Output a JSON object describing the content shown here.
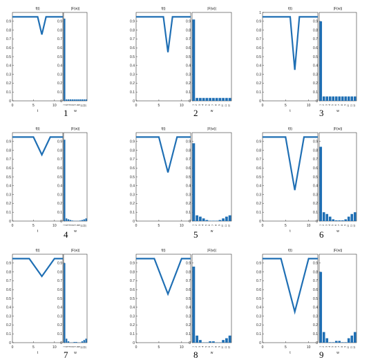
{
  "colors": {
    "series": "#1f6fb4",
    "axis": "#333333",
    "text": "#222222"
  },
  "panels": [
    {
      "number": "1",
      "depth": 0.75,
      "width": 1.0
    },
    {
      "number": "2",
      "depth": 0.55,
      "width": 1.0
    },
    {
      "number": "3",
      "depth": 0.35,
      "width": 1.0
    },
    {
      "number": "4",
      "depth": 0.75,
      "width": 2.0
    },
    {
      "number": "5",
      "depth": 0.55,
      "width": 2.0
    },
    {
      "number": "6",
      "depth": 0.35,
      "width": 2.0
    },
    {
      "number": "7",
      "depth": 0.75,
      "width": 3.0
    },
    {
      "number": "8",
      "depth": 0.55,
      "width": 3.0
    },
    {
      "number": "9",
      "depth": 0.35,
      "width": 3.0
    }
  ],
  "chart_data": [
    {
      "type": "line",
      "title": "f(t)",
      "xlabel": "t",
      "ylabel": "",
      "xlim": [
        0,
        12
      ],
      "ylim": [
        0,
        1
      ],
      "xticks": [
        0,
        5,
        10
      ],
      "yticks": [
        0,
        0.1,
        0.2,
        0.3,
        0.4,
        0.5,
        0.6,
        0.7,
        0.8,
        0.9
      ],
      "x": [
        0,
        6,
        7,
        8,
        12
      ],
      "y": [
        0.95,
        0.95,
        0.75,
        0.95,
        0.95
      ]
    },
    {
      "type": "bar",
      "title": "|F(w)|",
      "xlabel": "w",
      "ylabel": "",
      "ylim": [
        0,
        1
      ],
      "yticks": [
        0,
        0.1,
        0.2,
        0.3,
        0.4,
        0.5,
        0.6,
        0.7,
        0.8,
        0.9
      ],
      "categories": [
        "1",
        "2",
        "3",
        "4",
        "5",
        "6",
        "7",
        "8",
        "9",
        "10",
        "11",
        "12"
      ],
      "values": [
        0.93,
        0.017,
        0.017,
        0.017,
        0.017,
        0.017,
        0.017,
        0.017,
        0.017,
        0.017,
        0.017,
        0.017
      ]
    },
    {
      "type": "line",
      "title": "f(t)",
      "xlabel": "",
      "ylabel": "",
      "xlim": [
        0,
        12
      ],
      "ylim": [
        0,
        1
      ],
      "xticks": [
        0,
        5,
        10
      ],
      "yticks": [
        0,
        0.1,
        0.2,
        0.3,
        0.4,
        0.5,
        0.6,
        0.7,
        0.8,
        0.9
      ],
      "x": [
        0,
        6,
        7,
        8,
        12
      ],
      "y": [
        0.95,
        0.95,
        0.55,
        0.95,
        0.95
      ]
    },
    {
      "type": "bar",
      "title": "|F(w)|",
      "xlabel": "w",
      "ylabel": "",
      "ylim": [
        0,
        1
      ],
      "yticks": [
        0,
        0.1,
        0.2,
        0.3,
        0.4,
        0.5,
        0.6,
        0.7,
        0.8,
        0.9
      ],
      "categories": [
        "1",
        "2",
        "3",
        "4",
        "5",
        "6",
        "7",
        "8",
        "9",
        "10",
        "11",
        "12"
      ],
      "values": [
        0.92,
        0.033,
        0.033,
        0.033,
        0.033,
        0.033,
        0.033,
        0.033,
        0.033,
        0.033,
        0.033,
        0.033
      ]
    },
    {
      "type": "line",
      "title": "f(t)",
      "xlabel": "t",
      "ylabel": "",
      "xlim": [
        0,
        12
      ],
      "ylim": [
        0,
        1
      ],
      "xticks": [
        0,
        5,
        10
      ],
      "yticks": [
        0,
        0.1,
        0.2,
        0.3,
        0.4,
        0.5,
        0.6,
        0.7,
        0.8,
        0.9,
        1
      ],
      "x": [
        0,
        6,
        7,
        8,
        12
      ],
      "y": [
        0.95,
        0.95,
        0.35,
        0.95,
        0.95
      ]
    },
    {
      "type": "bar",
      "title": "|F(w)|",
      "xlabel": "w",
      "ylabel": "",
      "ylim": [
        0,
        1
      ],
      "yticks": [
        0,
        0.1,
        0.2,
        0.3,
        0.4,
        0.5,
        0.6,
        0.7,
        0.8,
        0.9
      ],
      "categories": [
        "1",
        "2",
        "3",
        "4",
        "5",
        "6",
        "7",
        "8",
        "9",
        "10",
        "11",
        "12"
      ],
      "values": [
        0.9,
        0.05,
        0.05,
        0.05,
        0.05,
        0.05,
        0.05,
        0.05,
        0.05,
        0.05,
        0.05,
        0.05
      ]
    },
    {
      "type": "line",
      "title": "f(t)",
      "xlabel": "t",
      "ylabel": "",
      "xlim": [
        0,
        12
      ],
      "ylim": [
        0,
        1
      ],
      "xticks": [
        0,
        5,
        10
      ],
      "yticks": [
        0,
        0.1,
        0.2,
        0.3,
        0.4,
        0.5,
        0.6,
        0.7,
        0.8,
        0.9
      ],
      "x": [
        0,
        5,
        7,
        9,
        12
      ],
      "y": [
        0.95,
        0.95,
        0.75,
        0.95,
        0.95
      ]
    },
    {
      "type": "bar",
      "title": "|F(w)|",
      "xlabel": "w",
      "ylabel": "",
      "ylim": [
        0,
        1
      ],
      "yticks": [
        0,
        0.1,
        0.2,
        0.3,
        0.4,
        0.5,
        0.6,
        0.7,
        0.8,
        0.9
      ],
      "categories": [
        "1",
        "2",
        "3",
        "4",
        "5",
        "6",
        "7",
        "8",
        "9",
        "10",
        "11",
        "12"
      ],
      "values": [
        0.92,
        0.03,
        0.02,
        0.012,
        0.006,
        0.002,
        0.002,
        0.002,
        0.006,
        0.012,
        0.02,
        0.03
      ]
    },
    {
      "type": "line",
      "title": "f(t)",
      "xlabel": "",
      "ylabel": "",
      "xlim": [
        0,
        12
      ],
      "ylim": [
        0,
        1
      ],
      "xticks": [
        0,
        5,
        10
      ],
      "yticks": [
        0,
        0.1,
        0.2,
        0.3,
        0.4,
        0.5,
        0.6,
        0.7,
        0.8,
        0.9
      ],
      "x": [
        0,
        5,
        7,
        9,
        12
      ],
      "y": [
        0.95,
        0.95,
        0.55,
        0.95,
        0.95
      ]
    },
    {
      "type": "bar",
      "title": "|F(w)|",
      "xlabel": "w",
      "ylabel": "",
      "ylim": [
        0,
        1
      ],
      "yticks": [
        0,
        0.1,
        0.2,
        0.3,
        0.4,
        0.5,
        0.6,
        0.7,
        0.8,
        0.9
      ],
      "categories": [
        "1",
        "2",
        "3",
        "4",
        "5",
        "6",
        "7",
        "8",
        "9",
        "10",
        "11",
        "12"
      ],
      "values": [
        0.88,
        0.065,
        0.05,
        0.03,
        0.012,
        0.004,
        0.004,
        0.004,
        0.012,
        0.03,
        0.05,
        0.065
      ]
    },
    {
      "type": "line",
      "title": "f(t)",
      "xlabel": "t",
      "ylabel": "",
      "xlim": [
        0,
        12
      ],
      "ylim": [
        0,
        1
      ],
      "xticks": [
        0,
        5,
        10
      ],
      "yticks": [
        0,
        0.1,
        0.2,
        0.3,
        0.4,
        0.5,
        0.6,
        0.7,
        0.8,
        0.9
      ],
      "x": [
        0,
        5,
        7,
        9,
        12
      ],
      "y": [
        0.95,
        0.95,
        0.35,
        0.95,
        0.95
      ]
    },
    {
      "type": "bar",
      "title": "|F(w)|",
      "xlabel": "w",
      "ylabel": "",
      "ylim": [
        0,
        1
      ],
      "yticks": [
        0,
        0.1,
        0.2,
        0.3,
        0.4,
        0.5,
        0.6,
        0.7,
        0.8,
        0.9
      ],
      "categories": [
        "1",
        "2",
        "3",
        "4",
        "5",
        "6",
        "7",
        "8",
        "9",
        "10",
        "11",
        "12"
      ],
      "values": [
        0.84,
        0.1,
        0.08,
        0.05,
        0.02,
        0.008,
        0.008,
        0.008,
        0.02,
        0.05,
        0.08,
        0.1
      ]
    },
    {
      "type": "line",
      "title": "f(t)",
      "xlabel": "t",
      "ylabel": "",
      "xlim": [
        0,
        12
      ],
      "ylim": [
        0,
        1
      ],
      "xticks": [
        0,
        5,
        10
      ],
      "yticks": [
        0,
        0.1,
        0.2,
        0.3,
        0.4,
        0.5,
        0.6,
        0.7,
        0.8,
        0.9
      ],
      "x": [
        0,
        4,
        7,
        10,
        12
      ],
      "y": [
        0.95,
        0.95,
        0.75,
        0.95,
        0.95
      ]
    },
    {
      "type": "bar",
      "title": "|F(w)|",
      "xlabel": "w",
      "ylabel": "",
      "ylim": [
        0,
        1
      ],
      "yticks": [
        0,
        0.1,
        0.2,
        0.3,
        0.4,
        0.5,
        0.6,
        0.7,
        0.8,
        0.9
      ],
      "categories": [
        "1",
        "2",
        "3",
        "4",
        "5",
        "6",
        "7",
        "8",
        "9",
        "10",
        "11",
        "12"
      ],
      "values": [
        0.9,
        0.045,
        0.015,
        0.002,
        0.002,
        0.008,
        0.008,
        0.002,
        0.002,
        0.015,
        0.03,
        0.045
      ]
    },
    {
      "type": "line",
      "title": "f(t)",
      "xlabel": "",
      "ylabel": "",
      "xlim": [
        0,
        12
      ],
      "ylim": [
        0,
        1
      ],
      "xticks": [
        0,
        5,
        10
      ],
      "yticks": [
        0,
        0.1,
        0.2,
        0.3,
        0.4,
        0.5,
        0.6,
        0.7,
        0.8,
        0.9
      ],
      "x": [
        0,
        4,
        7,
        10,
        12
      ],
      "y": [
        0.95,
        0.95,
        0.55,
        0.95,
        0.95
      ]
    },
    {
      "type": "bar",
      "title": "|F(w)|",
      "xlabel": "w",
      "ylabel": "",
      "ylim": [
        0,
        1
      ],
      "yticks": [
        0,
        0.1,
        0.2,
        0.3,
        0.4,
        0.5,
        0.6,
        0.7,
        0.8,
        0.9
      ],
      "categories": [
        "1",
        "2",
        "3",
        "4",
        "5",
        "6",
        "7",
        "8",
        "9",
        "10",
        "11",
        "12"
      ],
      "values": [
        0.86,
        0.08,
        0.03,
        0.003,
        0.003,
        0.015,
        0.015,
        0.003,
        0.003,
        0.03,
        0.05,
        0.08
      ]
    },
    {
      "type": "line",
      "title": "f(t)",
      "xlabel": "t",
      "ylabel": "",
      "xlim": [
        0,
        12
      ],
      "ylim": [
        0,
        1
      ],
      "xticks": [
        0,
        5,
        10
      ],
      "yticks": [
        0,
        0.1,
        0.2,
        0.3,
        0.4,
        0.5,
        0.6,
        0.7,
        0.8,
        0.9
      ],
      "x": [
        0,
        4,
        7,
        10,
        12
      ],
      "y": [
        0.95,
        0.95,
        0.35,
        0.95,
        0.95
      ]
    },
    {
      "type": "bar",
      "title": "|F(w)|",
      "xlabel": "w",
      "ylabel": "",
      "ylim": [
        0,
        1
      ],
      "yticks": [
        0,
        0.1,
        0.2,
        0.3,
        0.4,
        0.5,
        0.6,
        0.7,
        0.8,
        0.9
      ],
      "categories": [
        "1",
        "2",
        "3",
        "4",
        "5",
        "6",
        "7",
        "8",
        "9",
        "10",
        "11",
        "12"
      ],
      "values": [
        0.8,
        0.12,
        0.05,
        0.005,
        0.005,
        0.02,
        0.02,
        0.005,
        0.005,
        0.05,
        0.08,
        0.12
      ]
    }
  ]
}
